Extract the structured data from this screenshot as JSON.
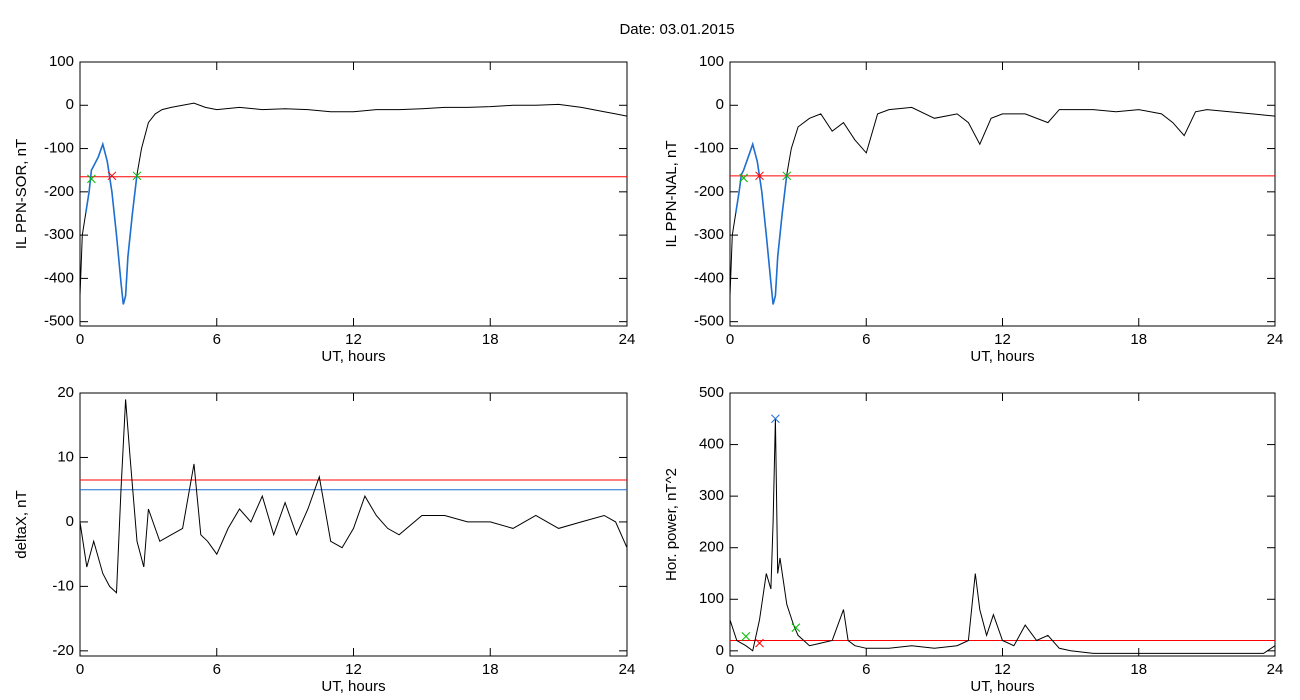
{
  "title": "Date:  03.01.2015",
  "chart_data": [
    {
      "type": "line",
      "xlabel": "UT, hours",
      "ylabel": "IL PPN-SOR, nT",
      "xlim": [
        0,
        24
      ],
      "xticks": [
        0,
        6,
        12,
        18,
        24
      ],
      "ylim": [
        -510,
        100
      ],
      "yticks": [
        -500,
        -400,
        -300,
        -200,
        -100,
        0,
        100
      ],
      "series": [
        {
          "color": "#000000",
          "x": [
            0,
            0.1,
            0.25,
            0.4,
            0.5,
            0.6,
            0.8,
            1.0,
            1.2,
            1.4,
            1.6,
            1.8,
            1.9,
            2.0,
            2.1,
            2.3,
            2.5,
            2.7,
            3.0,
            3.3,
            3.6,
            4,
            4.5,
            5,
            5.5,
            6,
            7,
            8,
            9,
            10,
            11,
            12,
            13,
            14,
            15,
            16,
            17,
            18,
            19,
            20,
            21,
            22,
            23,
            23.5,
            24
          ],
          "values": [
            -440,
            -300,
            -250,
            -200,
            -150,
            -140,
            -120,
            -90,
            -130,
            -200,
            -300,
            -410,
            -460,
            -440,
            -350,
            -250,
            -160,
            -100,
            -40,
            -20,
            -10,
            -5,
            0,
            5,
            -5,
            -10,
            -5,
            -10,
            -8,
            -10,
            -15,
            -15,
            -10,
            -10,
            -8,
            -5,
            -5,
            -3,
            0,
            0,
            2,
            -5,
            -15,
            -20,
            -25
          ]
        },
        {
          "color": "#1f6fd0",
          "x": [
            0.25,
            0.4,
            0.5,
            0.6,
            0.8,
            1.0,
            1.2,
            1.4,
            1.6,
            1.8,
            1.9,
            2.0,
            2.1,
            2.3,
            2.5
          ],
          "values": [
            -250,
            -200,
            -150,
            -140,
            -120,
            -90,
            -130,
            -200,
            -300,
            -410,
            -460,
            -440,
            -350,
            -250,
            -160
          ]
        }
      ],
      "hlines": [
        {
          "value": -165,
          "color": "#ff0000"
        }
      ],
      "markers": [
        {
          "x": 0.5,
          "y": -170,
          "color": "#00bb00"
        },
        {
          "x": 1.4,
          "y": -163,
          "color": "#ff0000"
        },
        {
          "x": 2.5,
          "y": -163,
          "color": "#00bb00"
        }
      ]
    },
    {
      "type": "line",
      "xlabel": "UT, hours",
      "ylabel": "IL PPN-NAL, nT",
      "xlim": [
        0,
        24
      ],
      "xticks": [
        0,
        6,
        12,
        18,
        24
      ],
      "ylim": [
        -510,
        100
      ],
      "yticks": [
        -500,
        -400,
        -300,
        -200,
        -100,
        0,
        100
      ],
      "series": [
        {
          "color": "#000000",
          "x": [
            0,
            0.1,
            0.25,
            0.4,
            0.5,
            0.6,
            0.8,
            1.0,
            1.2,
            1.4,
            1.6,
            1.8,
            1.9,
            2.0,
            2.1,
            2.3,
            2.5,
            2.7,
            3.0,
            3.5,
            4,
            4.5,
            5,
            5.5,
            6,
            6.5,
            7,
            8,
            9,
            10,
            10.5,
            11,
            11.5,
            12,
            13,
            14,
            14.5,
            15,
            16,
            17,
            18,
            19,
            19.5,
            20,
            20.5,
            21,
            22,
            23,
            24
          ],
          "values": [
            -440,
            -300,
            -250,
            -200,
            -160,
            -150,
            -120,
            -90,
            -130,
            -200,
            -300,
            -410,
            -460,
            -440,
            -350,
            -250,
            -160,
            -100,
            -50,
            -30,
            -20,
            -60,
            -40,
            -80,
            -110,
            -20,
            -10,
            -5,
            -30,
            -20,
            -40,
            -90,
            -30,
            -20,
            -20,
            -40,
            -10,
            -10,
            -10,
            -15,
            -10,
            -20,
            -40,
            -70,
            -15,
            -10,
            -15,
            -20,
            -25
          ]
        },
        {
          "color": "#1f6fd0",
          "x": [
            0.25,
            0.4,
            0.5,
            0.6,
            0.8,
            1.0,
            1.2,
            1.4,
            1.6,
            1.8,
            1.9,
            2.0,
            2.1,
            2.3,
            2.5
          ],
          "values": [
            -250,
            -200,
            -160,
            -150,
            -120,
            -90,
            -130,
            -200,
            -300,
            -410,
            -460,
            -440,
            -350,
            -250,
            -160
          ]
        }
      ],
      "hlines": [
        {
          "value": -163,
          "color": "#ff0000"
        }
      ],
      "markers": [
        {
          "x": 0.6,
          "y": -168,
          "color": "#00bb00"
        },
        {
          "x": 1.3,
          "y": -163,
          "color": "#ff0000"
        },
        {
          "x": 2.5,
          "y": -163,
          "color": "#00bb00"
        }
      ]
    },
    {
      "type": "line",
      "xlabel": "UT, hours",
      "ylabel": "deltaX, nT",
      "xlim": [
        0,
        24
      ],
      "xticks": [
        0,
        6,
        12,
        18,
        24
      ],
      "ylim": [
        -20.8,
        20
      ],
      "yticks": [
        -20,
        -10,
        0,
        10,
        20
      ],
      "series": [
        {
          "color": "#000000",
          "x": [
            0,
            0.3,
            0.6,
            1.0,
            1.3,
            1.6,
            1.8,
            2.0,
            2.2,
            2.5,
            2.8,
            3.0,
            3.5,
            4,
            4.5,
            5,
            5.3,
            5.6,
            6,
            6.5,
            7,
            7.5,
            8,
            8.5,
            9,
            9.5,
            10,
            10.5,
            11,
            11.5,
            12,
            12.5,
            13,
            13.5,
            14,
            15,
            16,
            17,
            18,
            19,
            20,
            21,
            22,
            23,
            23.5,
            24
          ],
          "values": [
            0,
            -7,
            -3,
            -8,
            -10,
            -11,
            5,
            19,
            10,
            -3,
            -7,
            2,
            -3,
            -2,
            -1,
            9,
            -2,
            -3,
            -5,
            -1,
            2,
            0,
            4,
            -2,
            3,
            -2,
            2,
            7,
            -3,
            -4,
            -1,
            4,
            1,
            -1,
            -2,
            1,
            1,
            0,
            0,
            -1,
            1,
            -1,
            0,
            1,
            0,
            -4
          ]
        }
      ],
      "hlines": [
        {
          "value": 6.5,
          "color": "#ff0000"
        },
        {
          "value": 5,
          "color": "#1f6fd0"
        }
      ],
      "markers": []
    },
    {
      "type": "line",
      "xlabel": "UT, hours",
      "ylabel": "Hor. power, nT^2",
      "xlim": [
        0,
        24
      ],
      "xticks": [
        0,
        6,
        12,
        18,
        24
      ],
      "ylim": [
        -10,
        500
      ],
      "yticks": [
        0,
        100,
        200,
        300,
        400,
        500
      ],
      "series": [
        {
          "color": "#000000",
          "x": [
            0,
            0.3,
            0.7,
            1.0,
            1.3,
            1.6,
            1.8,
            1.9,
            2.0,
            2.1,
            2.2,
            2.5,
            2.8,
            3.0,
            3.5,
            4,
            4.5,
            5,
            5.2,
            5.5,
            6,
            7,
            8,
            9,
            10,
            10.5,
            10.8,
            11,
            11.3,
            11.6,
            12,
            12.5,
            13,
            13.5,
            14,
            14.5,
            15,
            16,
            17,
            18,
            19,
            20,
            21,
            22,
            23,
            23.5,
            24
          ],
          "values": [
            60,
            20,
            10,
            0,
            60,
            150,
            120,
            250,
            450,
            150,
            180,
            90,
            50,
            30,
            10,
            15,
            20,
            80,
            20,
            10,
            5,
            5,
            10,
            5,
            10,
            20,
            150,
            80,
            30,
            70,
            20,
            10,
            50,
            20,
            30,
            5,
            0,
            -5,
            -5,
            -5,
            -5,
            -5,
            -5,
            -5,
            -5,
            -5,
            10
          ]
        }
      ],
      "hlines": [
        {
          "value": 20,
          "color": "#ff0000"
        }
      ],
      "markers": [
        {
          "x": 0.7,
          "y": 28,
          "color": "#00bb00"
        },
        {
          "x": 1.3,
          "y": 15,
          "color": "#ff0000"
        },
        {
          "x": 2.0,
          "y": 450,
          "color": "#1f6fd0"
        },
        {
          "x": 2.9,
          "y": 45,
          "color": "#00bb00"
        }
      ]
    }
  ]
}
